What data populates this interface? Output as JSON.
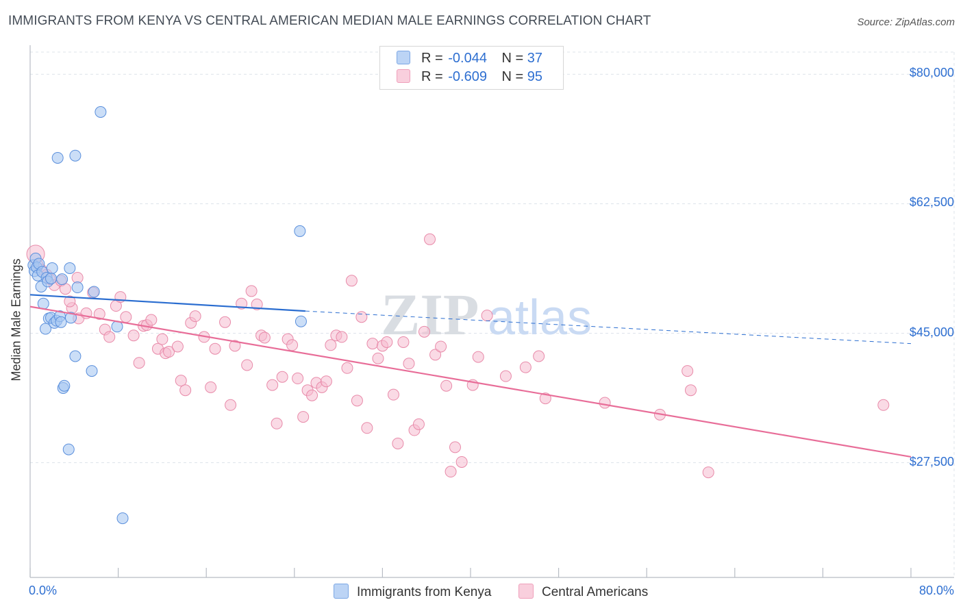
{
  "title": "IMMIGRANTS FROM KENYA VS CENTRAL AMERICAN MEDIAN MALE EARNINGS CORRELATION CHART",
  "source": "Source: ZipAtlas.com",
  "legend": {
    "r_label": "R =",
    "n_label": "N =",
    "kenya": {
      "r": "-0.044",
      "n": "37"
    },
    "central": {
      "r": "-0.609",
      "n": "95"
    }
  },
  "bottom_legend": {
    "kenya": "Immigrants from Kenya",
    "central": "Central Americans"
  },
  "watermark": {
    "zip": "ZIP",
    "atlas": "atlas"
  },
  "colors": {
    "kenya_fill": "#a9c8f2",
    "kenya_stroke": "#5a8fdc",
    "kenya_line": "#2a6dd0",
    "central_fill": "#f6bcd0",
    "central_stroke": "#e88aa9",
    "central_line": "#e86d98",
    "tick_text": "#2e6fd1",
    "grid": "#dde3ea"
  },
  "chart_data": {
    "type": "scatter",
    "xlabel": "",
    "ylabel": "Median Male Earnings",
    "xlim": [
      0,
      80
    ],
    "ylim": [
      12000,
      83000
    ],
    "x_tick_labels": [
      "0.0%",
      "80.0%"
    ],
    "y_ticks": [
      27500,
      45000,
      62500,
      80000
    ],
    "y_tick_labels": [
      "$27,500",
      "$45,000",
      "$62,500",
      "$80,000"
    ],
    "grid": true,
    "series": [
      {
        "name": "Immigrants from Kenya",
        "points": [
          [
            0.3,
            54200
          ],
          [
            0.4,
            53400
          ],
          [
            0.5,
            55100
          ],
          [
            0.6,
            53900
          ],
          [
            0.7,
            52800
          ],
          [
            0.8,
            54400
          ],
          [
            1.0,
            51300
          ],
          [
            1.1,
            53300
          ],
          [
            1.2,
            49000
          ],
          [
            1.4,
            45600
          ],
          [
            1.5,
            52500
          ],
          [
            1.6,
            52000
          ],
          [
            1.7,
            47000
          ],
          [
            1.9,
            47100
          ],
          [
            2.0,
            53800
          ],
          [
            2.2,
            46400
          ],
          [
            2.4,
            46700
          ],
          [
            2.5,
            68700
          ],
          [
            2.7,
            47300
          ],
          [
            2.8,
            46500
          ],
          [
            2.9,
            52300
          ],
          [
            3.0,
            37600
          ],
          [
            3.1,
            37900
          ],
          [
            3.5,
            29300
          ],
          [
            3.6,
            53800
          ],
          [
            3.7,
            47100
          ],
          [
            4.1,
            41900
          ],
          [
            4.3,
            51200
          ],
          [
            4.1,
            69000
          ],
          [
            5.6,
            39900
          ],
          [
            5.8,
            50600
          ],
          [
            6.4,
            74900
          ],
          [
            7.9,
            45900
          ],
          [
            8.4,
            20000
          ],
          [
            24.5,
            58800
          ],
          [
            24.6,
            46600
          ],
          [
            1.9,
            52400
          ]
        ]
      },
      {
        "name": "Central Americans",
        "points": [
          [
            0.5,
            55700
          ],
          [
            0.7,
            54200
          ],
          [
            1.0,
            53600
          ],
          [
            1.5,
            52900
          ],
          [
            1.8,
            52300
          ],
          [
            2.2,
            51500
          ],
          [
            2.8,
            52100
          ],
          [
            3.2,
            51000
          ],
          [
            4.3,
            52500
          ],
          [
            3.8,
            48400
          ],
          [
            3.6,
            49300
          ],
          [
            4.4,
            47000
          ],
          [
            5.1,
            47700
          ],
          [
            5.7,
            50500
          ],
          [
            6.3,
            47600
          ],
          [
            6.8,
            45500
          ],
          [
            7.2,
            44500
          ],
          [
            7.8,
            48700
          ],
          [
            8.2,
            49900
          ],
          [
            8.7,
            47200
          ],
          [
            9.4,
            44700
          ],
          [
            9.9,
            41000
          ],
          [
            10.3,
            46000
          ],
          [
            10.6,
            46100
          ],
          [
            11.0,
            46800
          ],
          [
            11.6,
            42900
          ],
          [
            12.0,
            44200
          ],
          [
            12.3,
            42300
          ],
          [
            12.6,
            42500
          ],
          [
            13.4,
            43200
          ],
          [
            13.7,
            38600
          ],
          [
            14.1,
            37300
          ],
          [
            14.6,
            46400
          ],
          [
            15.0,
            47300
          ],
          [
            15.8,
            44500
          ],
          [
            16.4,
            37700
          ],
          [
            16.8,
            42900
          ],
          [
            17.7,
            46500
          ],
          [
            18.2,
            35300
          ],
          [
            18.6,
            43300
          ],
          [
            19.2,
            49000
          ],
          [
            19.7,
            40700
          ],
          [
            20.1,
            50700
          ],
          [
            20.6,
            48900
          ],
          [
            21.0,
            44700
          ],
          [
            21.3,
            44400
          ],
          [
            22.0,
            38000
          ],
          [
            22.4,
            32800
          ],
          [
            22.9,
            39100
          ],
          [
            23.4,
            44200
          ],
          [
            23.8,
            43400
          ],
          [
            24.3,
            38900
          ],
          [
            24.8,
            33700
          ],
          [
            25.2,
            37300
          ],
          [
            25.6,
            36600
          ],
          [
            26.0,
            38300
          ],
          [
            26.5,
            37700
          ],
          [
            26.9,
            38500
          ],
          [
            27.3,
            43400
          ],
          [
            27.8,
            44700
          ],
          [
            28.3,
            44500
          ],
          [
            28.8,
            40300
          ],
          [
            29.2,
            52100
          ],
          [
            29.7,
            35900
          ],
          [
            30.1,
            47200
          ],
          [
            30.6,
            32200
          ],
          [
            31.1,
            43600
          ],
          [
            31.6,
            41600
          ],
          [
            32.0,
            43300
          ],
          [
            32.4,
            43800
          ],
          [
            33.0,
            36700
          ],
          [
            33.4,
            30100
          ],
          [
            33.9,
            43800
          ],
          [
            34.4,
            40900
          ],
          [
            34.9,
            31900
          ],
          [
            35.3,
            32700
          ],
          [
            35.8,
            45200
          ],
          [
            36.3,
            57700
          ],
          [
            36.8,
            42100
          ],
          [
            37.3,
            43200
          ],
          [
            37.8,
            37900
          ],
          [
            38.2,
            26300
          ],
          [
            38.6,
            29600
          ],
          [
            39.2,
            27600
          ],
          [
            40.2,
            38000
          ],
          [
            40.7,
            41800
          ],
          [
            41.5,
            47400
          ],
          [
            43.2,
            39200
          ],
          [
            45.0,
            40400
          ],
          [
            46.2,
            41900
          ],
          [
            46.8,
            36200
          ],
          [
            52.2,
            35600
          ],
          [
            57.2,
            34000
          ],
          [
            59.7,
            39900
          ],
          [
            60.0,
            37300
          ]
        ]
      },
      {
        "name": "",
        "points": [
          [
            61.6,
            26200
          ],
          [
            77.5,
            35300
          ]
        ]
      }
    ],
    "trend_lines": [
      {
        "series": "Immigrants from Kenya",
        "solid": [
          [
            0,
            50200
          ],
          [
            25,
            48000
          ]
        ],
        "dashed": [
          [
            25,
            48000
          ],
          [
            80,
            43600
          ]
        ]
      },
      {
        "series": "Central Americans",
        "solid": [
          [
            0,
            48600
          ],
          [
            80,
            28300
          ]
        ]
      }
    ]
  }
}
